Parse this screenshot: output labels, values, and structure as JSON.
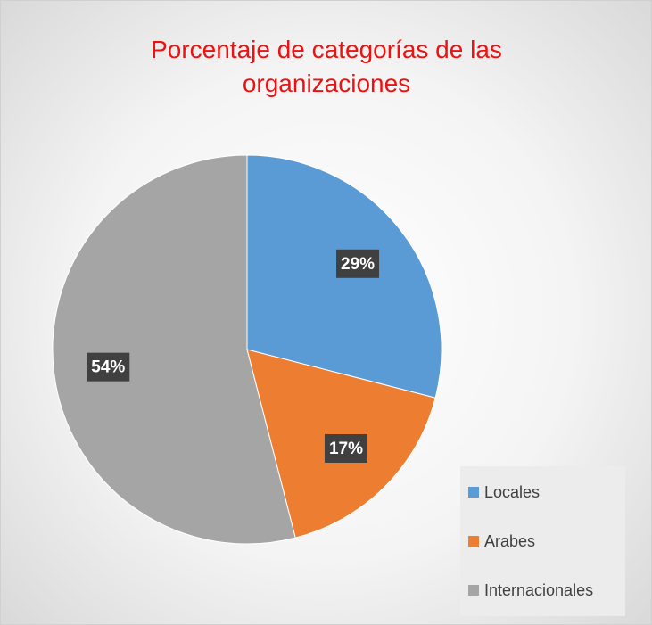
{
  "chart_data": {
    "type": "pie",
    "title": "Porcentaje de categorías de las organizaciones",
    "categories": [
      "Locales",
      "Arabes",
      "Internacionales"
    ],
    "values": [
      29,
      17,
      54
    ],
    "value_labels": [
      "29%",
      "17%",
      "54%"
    ],
    "colors": [
      "#5b9bd5",
      "#ed7d31",
      "#a5a5a5"
    ],
    "legend": "bottom-right"
  }
}
